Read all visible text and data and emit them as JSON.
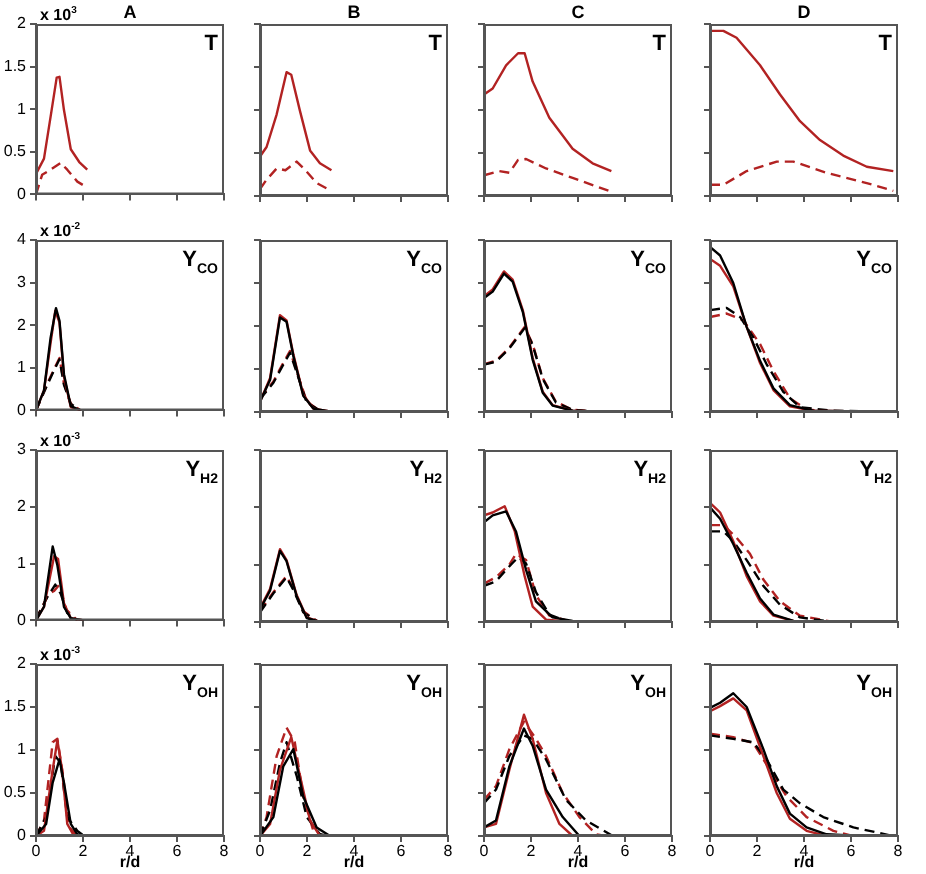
{
  "chart_data": [
    {
      "type": "line",
      "title": "A",
      "annotations": [
        "x 10$^{3}$",
        "T"
      ],
      "xlim": [
        0,
        8
      ],
      "xticks": [
        0,
        2,
        4,
        6,
        8
      ],
      "ylim": [
        0,
        2
      ],
      "yticks": [
        0,
        0.5,
        1,
        1.5,
        2
      ],
      "tick_labels": "y",
      "series": [
        {
          "color": "#b22222",
          "line_style": "solid",
          "x": [
            0,
            0.34,
            0.62,
            0.88,
            1.0,
            1.19,
            1.48,
            1.84,
            2.18
          ],
          "values": [
            0.24,
            0.42,
            0.91,
            1.37,
            1.38,
            0.99,
            0.53,
            0.38,
            0.29
          ]
        },
        {
          "color": "#b22222",
          "line_style": "dashed",
          "x": [
            0,
            0.26,
            0.62,
            1.05,
            1.33,
            1.76,
            2.18
          ],
          "values": [
            0,
            0.23,
            0.29,
            0.37,
            0.29,
            0.15,
            0.08
          ]
        }
      ]
    },
    {
      "type": "line",
      "title": "B",
      "annotations": [
        "T"
      ],
      "xlim": [
        0,
        8
      ],
      "xticks": [
        0,
        2,
        4,
        6,
        8
      ],
      "ylim": [
        0,
        2
      ],
      "yticks": [
        0,
        0.5,
        1,
        1.5,
        2
      ],
      "tick_labels": false,
      "series": [
        {
          "color": "#b22222",
          "line_style": "solid",
          "x": [
            0,
            0.28,
            0.71,
            1.13,
            1.33,
            1.7,
            2.13,
            2.55,
            3.04
          ],
          "values": [
            0.46,
            0.57,
            0.95,
            1.44,
            1.41,
            0.99,
            0.53,
            0.38,
            0.3
          ]
        },
        {
          "color": "#b22222",
          "line_style": "dashed",
          "x": [
            0,
            0.28,
            0.71,
            1.08,
            1.56,
            1.93,
            2.41,
            3.04
          ],
          "values": [
            0.08,
            0.19,
            0.32,
            0.3,
            0.4,
            0.3,
            0.15,
            0.06
          ]
        }
      ]
    },
    {
      "type": "line",
      "title": "C",
      "annotations": [
        "T"
      ],
      "xlim": [
        0,
        8
      ],
      "xticks": [
        0,
        2,
        4,
        6,
        8
      ],
      "ylim": [
        0,
        2
      ],
      "yticks": [
        0,
        0.5,
        1,
        1.5,
        2
      ],
      "tick_labels": false,
      "series": [
        {
          "color": "#b22222",
          "line_style": "solid",
          "x": [
            0,
            0.37,
            0.94,
            1.45,
            1.73,
            2.07,
            2.78,
            3.77,
            4.62,
            5.42
          ],
          "values": [
            1.18,
            1.25,
            1.52,
            1.66,
            1.66,
            1.33,
            0.91,
            0.55,
            0.38,
            0.29
          ]
        },
        {
          "color": "#b22222",
          "line_style": "dashed",
          "x": [
            0,
            0.65,
            1.08,
            1.45,
            1.79,
            2.64,
            3.77,
            5.42
          ],
          "values": [
            0.24,
            0.29,
            0.27,
            0.42,
            0.43,
            0.32,
            0.21,
            0.05
          ]
        }
      ]
    },
    {
      "type": "line",
      "title": "D",
      "annotations": [
        "T"
      ],
      "xlim": [
        0,
        8
      ],
      "xticks": [
        0,
        2,
        4,
        6,
        8
      ],
      "ylim": [
        0,
        2
      ],
      "yticks": [
        0,
        0.5,
        1,
        1.5,
        2
      ],
      "tick_labels": false,
      "series": [
        {
          "color": "#b22222",
          "line_style": "solid",
          "x": [
            0,
            0.57,
            1.13,
            2.13,
            2.98,
            3.83,
            4.68,
            5.67,
            6.67,
            7.8
          ],
          "values": [
            1.92,
            1.92,
            1.84,
            1.52,
            1.18,
            0.87,
            0.65,
            0.47,
            0.34,
            0.29
          ]
        },
        {
          "color": "#b22222",
          "line_style": "dashed",
          "x": [
            0,
            0.57,
            1.56,
            2.84,
            3.55,
            4.96,
            6.67,
            7.8
          ],
          "values": [
            0.13,
            0.13,
            0.29,
            0.4,
            0.4,
            0.27,
            0.15,
            0.06
          ]
        }
      ]
    },
    {
      "type": "line",
      "annotations": [
        "x 10$^{-2}$",
        "Y$_{CO}$"
      ],
      "xlim": [
        0,
        8
      ],
      "xticks": [
        0,
        2,
        4,
        6,
        8
      ],
      "ylim": [
        0,
        4
      ],
      "yticks": [
        0,
        1,
        2,
        3,
        4
      ],
      "tick_labels": "y",
      "series": [
        {
          "color": "#000000",
          "line_style": "solid",
          "x": [
            0,
            0.34,
            0.62,
            0.85,
            1.0,
            1.19,
            1.48,
            1.9
          ],
          "values": [
            0,
            0.47,
            1.7,
            2.4,
            2.1,
            0.85,
            0.1,
            0
          ]
        },
        {
          "color": "#b22222",
          "line_style": "solid",
          "x": [
            0,
            0.34,
            0.62,
            0.82,
            1.0,
            1.19,
            1.48,
            1.9
          ],
          "values": [
            0,
            0.47,
            1.58,
            2.34,
            2.06,
            0.79,
            0.08,
            0
          ]
        },
        {
          "color": "#000000",
          "line_style": "dashed",
          "x": [
            0,
            0.48,
            0.82,
            1.0,
            1.19,
            1.48,
            1.9
          ],
          "values": [
            0,
            0.6,
            1.0,
            1.2,
            0.6,
            0.15,
            0
          ]
        },
        {
          "color": "#b22222",
          "line_style": "dashed",
          "x": [
            0,
            0.48,
            0.82,
            1.0,
            1.19,
            1.48,
            1.9
          ],
          "values": [
            0,
            0.63,
            1.03,
            1.23,
            0.63,
            0.16,
            0
          ]
        }
      ]
    },
    {
      "type": "line",
      "annotations": [
        "Y$_{CO}$"
      ],
      "xlim": [
        0,
        8
      ],
      "xticks": [
        0,
        2,
        4,
        6,
        8
      ],
      "ylim": [
        0,
        4
      ],
      "yticks": [
        0,
        1,
        2,
        3,
        4
      ],
      "tick_labels": false,
      "series": [
        {
          "color": "#000000",
          "line_style": "solid",
          "x": [
            0,
            0.43,
            0.85,
            1.13,
            1.42,
            1.84,
            2.27,
            3.1
          ],
          "values": [
            0.24,
            0.75,
            2.2,
            2.1,
            1.3,
            0.38,
            0.08,
            0
          ]
        },
        {
          "color": "#b22222",
          "line_style": "solid",
          "x": [
            0,
            0.43,
            0.85,
            1.13,
            1.42,
            1.84,
            2.27,
            3.1
          ],
          "values": [
            0.24,
            0.79,
            2.25,
            2.13,
            1.34,
            0.4,
            0.08,
            0
          ]
        },
        {
          "color": "#000000",
          "line_style": "dashed",
          "x": [
            0,
            0.57,
            0.99,
            1.28,
            1.56,
            1.99,
            2.55,
            3.1
          ],
          "values": [
            0.3,
            0.68,
            1.1,
            1.38,
            0.92,
            0.22,
            0.03,
            0
          ]
        },
        {
          "color": "#b22222",
          "line_style": "dashed",
          "x": [
            0,
            0.57,
            0.99,
            1.28,
            1.56,
            1.99,
            2.55,
            3.1
          ],
          "values": [
            0.32,
            0.71,
            1.14,
            1.42,
            0.95,
            0.24,
            0.03,
            0
          ]
        }
      ]
    },
    {
      "type": "line",
      "annotations": [
        "Y$_{CO}$"
      ],
      "xlim": [
        0,
        8
      ],
      "xticks": [
        0,
        2,
        4,
        6,
        8
      ],
      "ylim": [
        0,
        4
      ],
      "yticks": [
        0,
        1,
        2,
        3,
        4
      ],
      "tick_labels": false,
      "series": [
        {
          "color": "#000000",
          "line_style": "solid",
          "x": [
            0,
            0.37,
            0.85,
            1.22,
            1.65,
            2.07,
            2.5,
            2.92,
            3.77,
            5.0
          ],
          "values": [
            2.65,
            2.8,
            3.22,
            3.03,
            2.33,
            1.22,
            0.45,
            0.15,
            0.03,
            0
          ]
        },
        {
          "color": "#b22222",
          "line_style": "solid",
          "x": [
            0,
            0.37,
            0.85,
            1.22,
            1.65,
            2.07,
            2.5,
            2.92,
            3.77,
            5.0
          ],
          "values": [
            2.69,
            2.85,
            3.27,
            3.08,
            2.37,
            1.26,
            0.47,
            0.16,
            0.03,
            0
          ]
        },
        {
          "color": "#000000",
          "line_style": "dashed",
          "x": [
            0,
            0.51,
            1.08,
            1.73,
            2.07,
            2.5,
            3.06,
            3.77,
            5.0
          ],
          "values": [
            1.1,
            1.17,
            1.48,
            1.95,
            1.56,
            0.77,
            0.22,
            0.05,
            0
          ]
        },
        {
          "color": "#b22222",
          "line_style": "dashed",
          "x": [
            0,
            0.51,
            1.08,
            1.73,
            2.07,
            2.5,
            3.06,
            3.77,
            5.0
          ],
          "values": [
            1.11,
            1.19,
            1.5,
            1.98,
            1.58,
            0.79,
            0.24,
            0.05,
            0
          ]
        }
      ]
    },
    {
      "type": "line",
      "annotations": [
        "Y$_{CO}$"
      ],
      "xlim": [
        0,
        8
      ],
      "xticks": [
        0,
        2,
        4,
        6,
        8
      ],
      "ylim": [
        0,
        4
      ],
      "yticks": [
        0,
        1,
        2,
        3,
        4
      ],
      "tick_labels": false,
      "series": [
        {
          "color": "#000000",
          "line_style": "solid",
          "x": [
            0,
            0.43,
            0.99,
            1.56,
            2.13,
            2.7,
            3.4,
            4.4,
            7.8
          ],
          "values": [
            3.84,
            3.64,
            3.0,
            1.98,
            1.19,
            0.55,
            0.16,
            0.03,
            0
          ]
        },
        {
          "color": "#b22222",
          "line_style": "solid",
          "x": [
            0,
            0.43,
            0.99,
            1.56,
            2.13,
            2.7,
            3.4,
            4.4,
            7.8
          ],
          "values": [
            3.56,
            3.4,
            2.92,
            1.98,
            1.14,
            0.51,
            0.13,
            0.03,
            0
          ]
        },
        {
          "color": "#000000",
          "line_style": "dashed",
          "x": [
            0,
            0.71,
            1.28,
            1.84,
            2.41,
            3.12,
            3.83,
            5.25,
            7.8
          ],
          "values": [
            2.37,
            2.42,
            2.21,
            1.74,
            1.11,
            0.47,
            0.11,
            0.03,
            0
          ]
        },
        {
          "color": "#b22222",
          "line_style": "dashed",
          "x": [
            0,
            0.71,
            1.42,
            2.13,
            2.7,
            3.4,
            4.11,
            5.25
          ],
          "values": [
            2.21,
            2.29,
            2.13,
            1.58,
            0.95,
            0.32,
            0.06,
            0
          ]
        }
      ]
    },
    {
      "type": "line",
      "annotations": [
        "x 10$^{-3}$",
        "Y$_{H2}$"
      ],
      "xlim": [
        0,
        8
      ],
      "xticks": [
        0,
        2,
        4,
        6,
        8
      ],
      "ylim": [
        0,
        3
      ],
      "yticks": [
        0,
        1,
        2,
        3
      ],
      "tick_labels": "y",
      "series": [
        {
          "color": "#000000",
          "line_style": "solid",
          "x": [
            0,
            0.34,
            0.71,
            0.91,
            1.19,
            1.48,
            2.04
          ],
          "values": [
            0,
            0.24,
            1.3,
            0.97,
            0.24,
            0.04,
            0
          ]
        },
        {
          "color": "#b22222",
          "line_style": "solid",
          "x": [
            0,
            0.34,
            0.77,
            0.94,
            1.19,
            1.48,
            2.04
          ],
          "values": [
            0,
            0.24,
            1.13,
            1.08,
            0.3,
            0.04,
            0
          ]
        },
        {
          "color": "#000000",
          "line_style": "dashed",
          "x": [
            0,
            0.48,
            0.82,
            1.05,
            1.33,
            1.76
          ],
          "values": [
            0.02,
            0.41,
            0.63,
            0.47,
            0.13,
            0
          ]
        },
        {
          "color": "#b22222",
          "line_style": "dashed",
          "x": [
            0,
            0.54,
            0.77,
            1.0,
            1.28,
            1.76
          ],
          "values": [
            0.02,
            0.47,
            0.52,
            0.63,
            0.19,
            0
          ]
        }
      ]
    },
    {
      "type": "line",
      "annotations": [
        "Y$_{H2}$"
      ],
      "xlim": [
        0,
        8
      ],
      "xticks": [
        0,
        2,
        4,
        6,
        8
      ],
      "ylim": [
        0,
        3
      ],
      "yticks": [
        0,
        1,
        2,
        3
      ],
      "tick_labels": false,
      "series": [
        {
          "color": "#000000",
          "line_style": "solid",
          "x": [
            0,
            0.43,
            0.85,
            1.13,
            1.56,
            1.99,
            2.55
          ],
          "values": [
            0.22,
            0.55,
            1.24,
            1.06,
            0.45,
            0.07,
            0
          ]
        },
        {
          "color": "#b22222",
          "line_style": "solid",
          "x": [
            0,
            0.43,
            0.85,
            1.13,
            1.56,
            1.99,
            2.55
          ],
          "values": [
            0.24,
            0.58,
            1.27,
            1.08,
            0.47,
            0.08,
            0
          ]
        },
        {
          "color": "#000000",
          "line_style": "dashed",
          "x": [
            0,
            0.57,
            1.13,
            1.42,
            1.84,
            2.41,
            2.84
          ],
          "values": [
            0.17,
            0.5,
            0.78,
            0.56,
            0.17,
            0.02,
            0
          ]
        },
        {
          "color": "#b22222",
          "line_style": "dashed",
          "x": [
            0,
            0.57,
            1.13,
            1.42,
            1.84,
            2.41,
            2.84
          ],
          "values": [
            0.19,
            0.52,
            0.8,
            0.58,
            0.19,
            0.02,
            0
          ]
        }
      ]
    },
    {
      "type": "line",
      "annotations": [
        "Y$_{H2}$"
      ],
      "xlim": [
        0,
        8
      ],
      "xticks": [
        0,
        2,
        4,
        6,
        8
      ],
      "ylim": [
        0,
        3
      ],
      "yticks": [
        0,
        1,
        2,
        3
      ],
      "tick_labels": false,
      "series": [
        {
          "color": "#000000",
          "line_style": "solid",
          "x": [
            0,
            0.37,
            0.94,
            1.36,
            1.79,
            2.21,
            2.92,
            3.77,
            5.0
          ],
          "values": [
            1.74,
            1.86,
            1.93,
            1.58,
            0.91,
            0.36,
            0.08,
            0.02,
            0
          ]
        },
        {
          "color": "#b22222",
          "line_style": "solid",
          "x": [
            0,
            0.37,
            0.88,
            1.31,
            1.73,
            2.07,
            2.64,
            3.77
          ],
          "values": [
            1.86,
            1.91,
            2.02,
            1.58,
            0.8,
            0.27,
            0.04,
            0
          ]
        },
        {
          "color": "#000000",
          "line_style": "dashed",
          "x": [
            0,
            0.51,
            0.94,
            1.45,
            1.79,
            2.21,
            2.78,
            3.49,
            5.0
          ],
          "values": [
            0.63,
            0.71,
            0.91,
            1.13,
            1.02,
            0.52,
            0.13,
            0.02,
            0
          ]
        },
        {
          "color": "#b22222",
          "line_style": "dashed",
          "x": [
            0,
            0.51,
            1.08,
            1.36,
            1.79,
            2.21,
            2.78,
            3.77
          ],
          "values": [
            0.67,
            0.78,
            1.0,
            1.19,
            1.08,
            0.47,
            0.11,
            0
          ]
        }
      ]
    },
    {
      "type": "line",
      "annotations": [
        "Y$_{H2}$"
      ],
      "xlim": [
        0,
        8
      ],
      "xticks": [
        0,
        2,
        4,
        6,
        8
      ],
      "ylim": [
        0,
        3
      ],
      "yticks": [
        0,
        1,
        2,
        3
      ],
      "tick_labels": false,
      "series": [
        {
          "color": "#000000",
          "line_style": "solid",
          "x": [
            0,
            0.43,
            0.99,
            1.56,
            2.13,
            2.7,
            3.55,
            5.25
          ],
          "values": [
            2.0,
            1.8,
            1.36,
            0.86,
            0.41,
            0.13,
            0.02,
            0
          ]
        },
        {
          "color": "#b22222",
          "line_style": "solid",
          "x": [
            0,
            0.43,
            0.99,
            1.56,
            2.13,
            2.7,
            3.55,
            5.25
          ],
          "values": [
            2.08,
            1.91,
            1.41,
            0.8,
            0.36,
            0.11,
            0.02,
            0
          ]
        },
        {
          "color": "#000000",
          "line_style": "dashed",
          "x": [
            0,
            0.57,
            0.99,
            1.56,
            2.27,
            2.98,
            3.83,
            5.25
          ],
          "values": [
            1.58,
            1.58,
            1.41,
            1.08,
            0.63,
            0.3,
            0.08,
            0
          ]
        },
        {
          "color": "#b22222",
          "line_style": "dashed",
          "x": [
            0,
            0.57,
            1.13,
            1.7,
            2.27,
            2.98,
            3.83,
            5.25
          ],
          "values": [
            1.69,
            1.69,
            1.47,
            1.19,
            0.74,
            0.36,
            0.11,
            0
          ]
        }
      ]
    },
    {
      "type": "line",
      "xlabel": "r/d",
      "annotations": [
        "x 10$^{-3}$",
        "Y$_{OH}$"
      ],
      "xlim": [
        0,
        8
      ],
      "xticks": [
        0,
        2,
        4,
        6,
        8
      ],
      "ylim": [
        0,
        2
      ],
      "yticks": [
        0,
        0.5,
        1,
        1.5,
        2
      ],
      "series": [
        {
          "color": "#000000",
          "line_style": "solid",
          "x": [
            0,
            0.43,
            0.71,
            1.0,
            1.19,
            1.48,
            1.76,
            2.04
          ],
          "values": [
            0,
            0.14,
            0.62,
            0.89,
            0.62,
            0.14,
            0.02,
            0
          ]
        },
        {
          "color": "#b22222",
          "line_style": "solid",
          "x": [
            0,
            0.34,
            0.71,
            0.91,
            1.11,
            1.33,
            1.62
          ],
          "values": [
            0,
            0.06,
            0.77,
            1.11,
            0.77,
            0.14,
            0
          ]
        },
        {
          "color": "#000000",
          "line_style": "dashed",
          "x": [
            0,
            0.43,
            0.82,
            1.05,
            1.33,
            1.76,
            2.04
          ],
          "values": [
            0,
            0.22,
            0.93,
            0.85,
            0.22,
            0.06,
            0
          ]
        },
        {
          "color": "#b22222",
          "line_style": "dashed",
          "x": [
            0,
            0.34,
            0.71,
            0.91,
            1.13,
            1.42,
            1.76
          ],
          "values": [
            0,
            0.18,
            1.09,
            1.13,
            0.74,
            0.1,
            0
          ]
        }
      ]
    },
    {
      "type": "line",
      "xlabel": "r/d",
      "annotations": [
        "Y$_{OH}$"
      ],
      "xlim": [
        0,
        8
      ],
      "xticks": [
        0,
        2,
        4,
        6,
        8
      ],
      "ylim": [
        0,
        2
      ],
      "yticks": [
        0,
        0.5,
        1,
        1.5,
        2
      ],
      "tick_labels": "x",
      "series": [
        {
          "color": "#000000",
          "line_style": "solid",
          "x": [
            0,
            0.57,
            0.99,
            1.42,
            1.84,
            2.41,
            2.98
          ],
          "values": [
            0,
            0.22,
            0.81,
            1.01,
            0.46,
            0.1,
            0
          ]
        },
        {
          "color": "#b22222",
          "line_style": "solid",
          "x": [
            0,
            0.43,
            0.85,
            1.33,
            1.7,
            2.13,
            2.55
          ],
          "values": [
            0,
            0.14,
            0.77,
            1.15,
            0.7,
            0.18,
            0
          ]
        },
        {
          "color": "#000000",
          "line_style": "dashed",
          "x": [
            0,
            0.43,
            0.85,
            1.13,
            1.56,
            1.99,
            2.55,
            2.98
          ],
          "values": [
            0,
            0.3,
            0.85,
            1.09,
            0.7,
            0.22,
            0.02,
            0
          ]
        },
        {
          "color": "#b22222",
          "line_style": "dashed",
          "x": [
            0,
            0.28,
            0.71,
            1.13,
            1.48,
            1.84,
            2.27,
            2.7
          ],
          "values": [
            0,
            0.22,
            0.93,
            1.26,
            1.09,
            0.46,
            0.06,
            0
          ]
        }
      ]
    },
    {
      "type": "line",
      "xlabel": "r/d",
      "annotations": [
        "Y$_{OH}$"
      ],
      "xlim": [
        0,
        8
      ],
      "xticks": [
        0,
        2,
        4,
        6,
        8
      ],
      "ylim": [
        0,
        2
      ],
      "yticks": [
        0,
        0.5,
        1,
        1.5,
        2
      ],
      "tick_labels": "x",
      "series": [
        {
          "color": "#000000",
          "line_style": "solid",
          "x": [
            0,
            0.51,
            1.08,
            1.7,
            2.07,
            2.64,
            3.35,
            4.06
          ],
          "values": [
            0.1,
            0.18,
            0.81,
            1.25,
            1.05,
            0.54,
            0.22,
            0
          ]
        },
        {
          "color": "#b22222",
          "line_style": "solid",
          "x": [
            0,
            0.51,
            1.08,
            1.7,
            2.07,
            2.64,
            3.21,
            3.77
          ],
          "values": [
            0.1,
            0.14,
            0.77,
            1.41,
            1.13,
            0.5,
            0.14,
            0
          ]
        },
        {
          "color": "#000000",
          "line_style": "dashed",
          "x": [
            0,
            0.51,
            1.08,
            1.7,
            2.07,
            2.64,
            3.49,
            4.34,
            5.48
          ],
          "values": [
            0.38,
            0.54,
            0.93,
            1.17,
            1.13,
            0.89,
            0.42,
            0.18,
            0
          ]
        },
        {
          "color": "#b22222",
          "line_style": "dashed",
          "x": [
            0,
            0.51,
            1.08,
            1.7,
            2.21,
            2.64,
            3.35,
            4.06,
            4.77,
            5.2
          ],
          "values": [
            0.42,
            0.58,
            1.01,
            1.33,
            1.13,
            0.93,
            0.5,
            0.22,
            0.02,
            0
          ]
        }
      ]
    },
    {
      "type": "line",
      "xlabel": "r/d",
      "annotations": [
        "Y$_{OH}$"
      ],
      "xlim": [
        0,
        8
      ],
      "xticks": [
        0,
        2,
        4,
        6,
        8
      ],
      "ylim": [
        0,
        2
      ],
      "yticks": [
        0,
        0.5,
        1,
        1.5,
        2
      ],
      "tick_labels": "x",
      "series": [
        {
          "color": "#000000",
          "line_style": "solid",
          "x": [
            0,
            0.43,
            0.99,
            1.56,
            2.27,
            2.84,
            3.4,
            4.11,
            4.96,
            6.38
          ],
          "values": [
            1.49,
            1.55,
            1.66,
            1.5,
            1.01,
            0.58,
            0.26,
            0.1,
            0.02,
            0
          ]
        },
        {
          "color": "#b22222",
          "line_style": "solid",
          "x": [
            0,
            0.43,
            0.99,
            1.56,
            2.27,
            2.84,
            3.4,
            4.11,
            4.96
          ],
          "values": [
            1.45,
            1.51,
            1.6,
            1.46,
            0.93,
            0.5,
            0.2,
            0.06,
            0
          ]
        },
        {
          "color": "#000000",
          "line_style": "dashed",
          "x": [
            0,
            0.99,
            1.84,
            2.41,
            3.12,
            3.83,
            4.82,
            6.1,
            7.8
          ],
          "values": [
            1.17,
            1.13,
            1.09,
            0.89,
            0.54,
            0.38,
            0.22,
            0.1,
            0
          ]
        },
        {
          "color": "#b22222",
          "line_style": "dashed",
          "x": [
            0,
            0.99,
            1.84,
            2.55,
            3.26,
            4.11,
            5.25,
            6.1
          ],
          "values": [
            1.19,
            1.15,
            1.08,
            0.77,
            0.46,
            0.22,
            0.06,
            0
          ]
        }
      ]
    }
  ]
}
